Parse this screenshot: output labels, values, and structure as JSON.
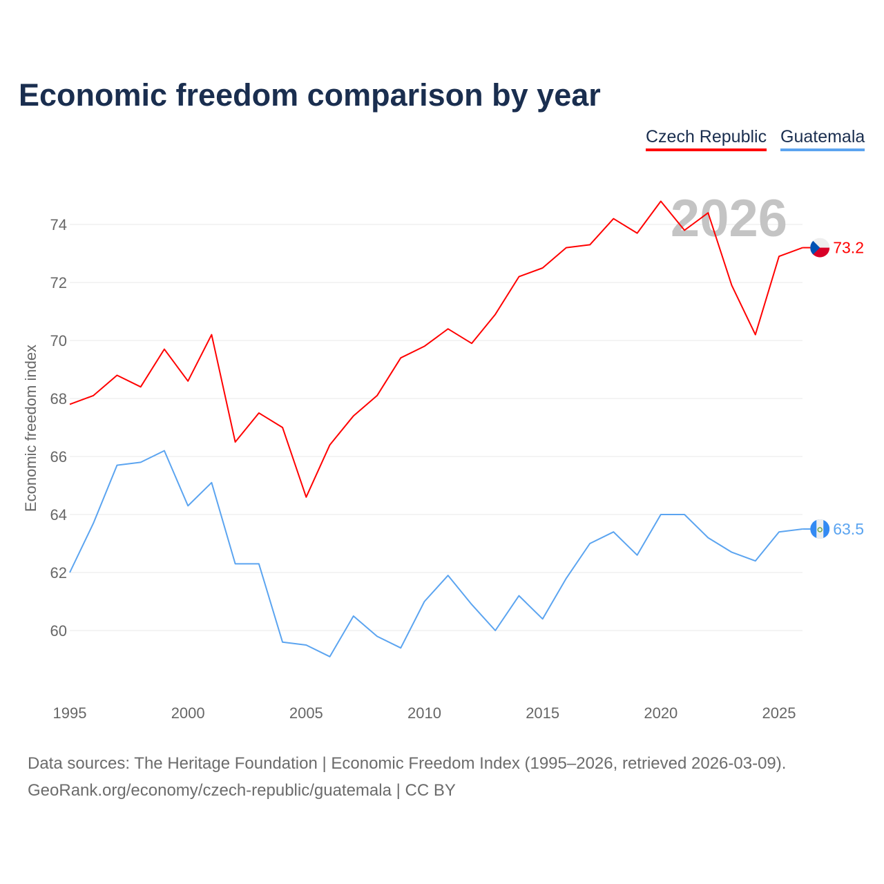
{
  "chart_data": {
    "type": "line",
    "title": "Economic freedom comparison by year",
    "xlabel": "",
    "ylabel": "Economic freedom index",
    "xlim": [
      1995,
      2026
    ],
    "ylim": [
      58.4,
      75.6
    ],
    "grid": true,
    "legend_position": "top-right",
    "watermark_year": "2026",
    "x_ticks": [
      "1995",
      "2000",
      "2005",
      "2010",
      "2015",
      "2020",
      "2025"
    ],
    "y_ticks": [
      "60",
      "62",
      "64",
      "66",
      "68",
      "70",
      "72",
      "74"
    ],
    "x": [
      1995,
      1996,
      1997,
      1998,
      1999,
      2000,
      2001,
      2002,
      2003,
      2004,
      2005,
      2006,
      2007,
      2008,
      2009,
      2010,
      2011,
      2012,
      2013,
      2014,
      2015,
      2016,
      2017,
      2018,
      2019,
      2020,
      2021,
      2022,
      2023,
      2024,
      2025,
      2026
    ],
    "series": [
      {
        "name": "Czech Republic",
        "color": "#ff0000",
        "end_label": "73.2",
        "values": [
          67.8,
          68.1,
          68.8,
          68.4,
          69.7,
          68.6,
          70.2,
          66.5,
          67.5,
          67.0,
          64.6,
          66.4,
          67.4,
          68.1,
          69.4,
          69.8,
          70.4,
          69.9,
          70.9,
          72.2,
          72.5,
          73.2,
          73.3,
          74.2,
          73.7,
          74.8,
          73.8,
          74.4,
          71.9,
          70.2,
          72.9,
          73.2
        ]
      },
      {
        "name": "Guatemala",
        "color": "#5ba4f0",
        "end_label": "63.5",
        "values": [
          62.0,
          63.7,
          65.7,
          65.8,
          66.2,
          64.3,
          65.1,
          62.3,
          62.3,
          59.6,
          59.5,
          59.1,
          60.5,
          59.8,
          59.4,
          61.0,
          61.9,
          60.9,
          60.0,
          61.2,
          60.4,
          61.8,
          63.0,
          63.4,
          62.6,
          64.0,
          64.0,
          63.2,
          62.7,
          62.4,
          63.4,
          63.5
        ]
      }
    ]
  },
  "footer": {
    "line1": "Data sources: The Heritage Foundation | Economic Freedom Index (1995–2026, retrieved 2026-03-09).",
    "line2": "GeoRank.org/economy/czech-republic/guatemala | CC BY"
  }
}
